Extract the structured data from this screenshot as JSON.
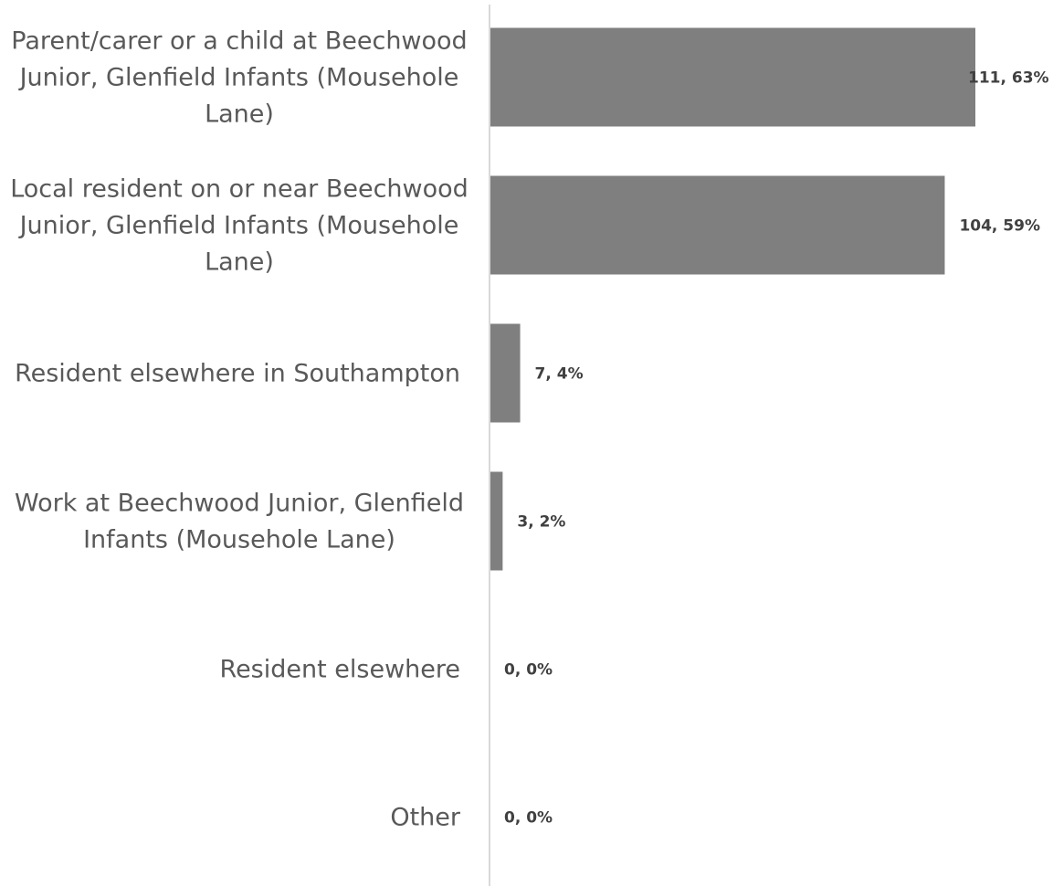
{
  "chart_data": {
    "type": "bar",
    "orientation": "horizontal",
    "categories": [
      "Parent/carer or a child at Beechwood Junior, Glenfield Infants (Mousehole Lane)",
      "Local resident on or near Beechwood Junior, Glenfield Infants (Mousehole Lane)",
      "Resident elsewhere in Southampton",
      "Work at Beechwood Junior, Glenfield Infants (Mousehole Lane)",
      "Resident elsewhere",
      "Other"
    ],
    "category_lines": [
      [
        "Parent/carer or a child at Beechwood",
        "Junior, Glenfield Infants (Mousehole",
        "Lane)"
      ],
      [
        "Local resident on or near Beechwood",
        "Junior, Glenfield Infants (Mousehole",
        "Lane)"
      ],
      [
        "Resident elsewhere in Southampton"
      ],
      [
        "Work at Beechwood Junior, Glenfield",
        "Infants (Mousehole Lane)"
      ],
      [
        "Resident elsewhere"
      ],
      [
        "Other"
      ]
    ],
    "values": [
      111,
      104,
      7,
      3,
      0,
      0
    ],
    "data_labels": [
      "111, 63%",
      "104, 59%",
      "7, 4%",
      "3, 2%",
      "0, 0%",
      "0, 0%"
    ],
    "title": "",
    "xlabel": "",
    "ylabel": "",
    "xlim": [
      0,
      125
    ],
    "grid": false,
    "legend": "none",
    "bar_color": "#7f7f7f",
    "axis_color": "#d9d9d9"
  }
}
